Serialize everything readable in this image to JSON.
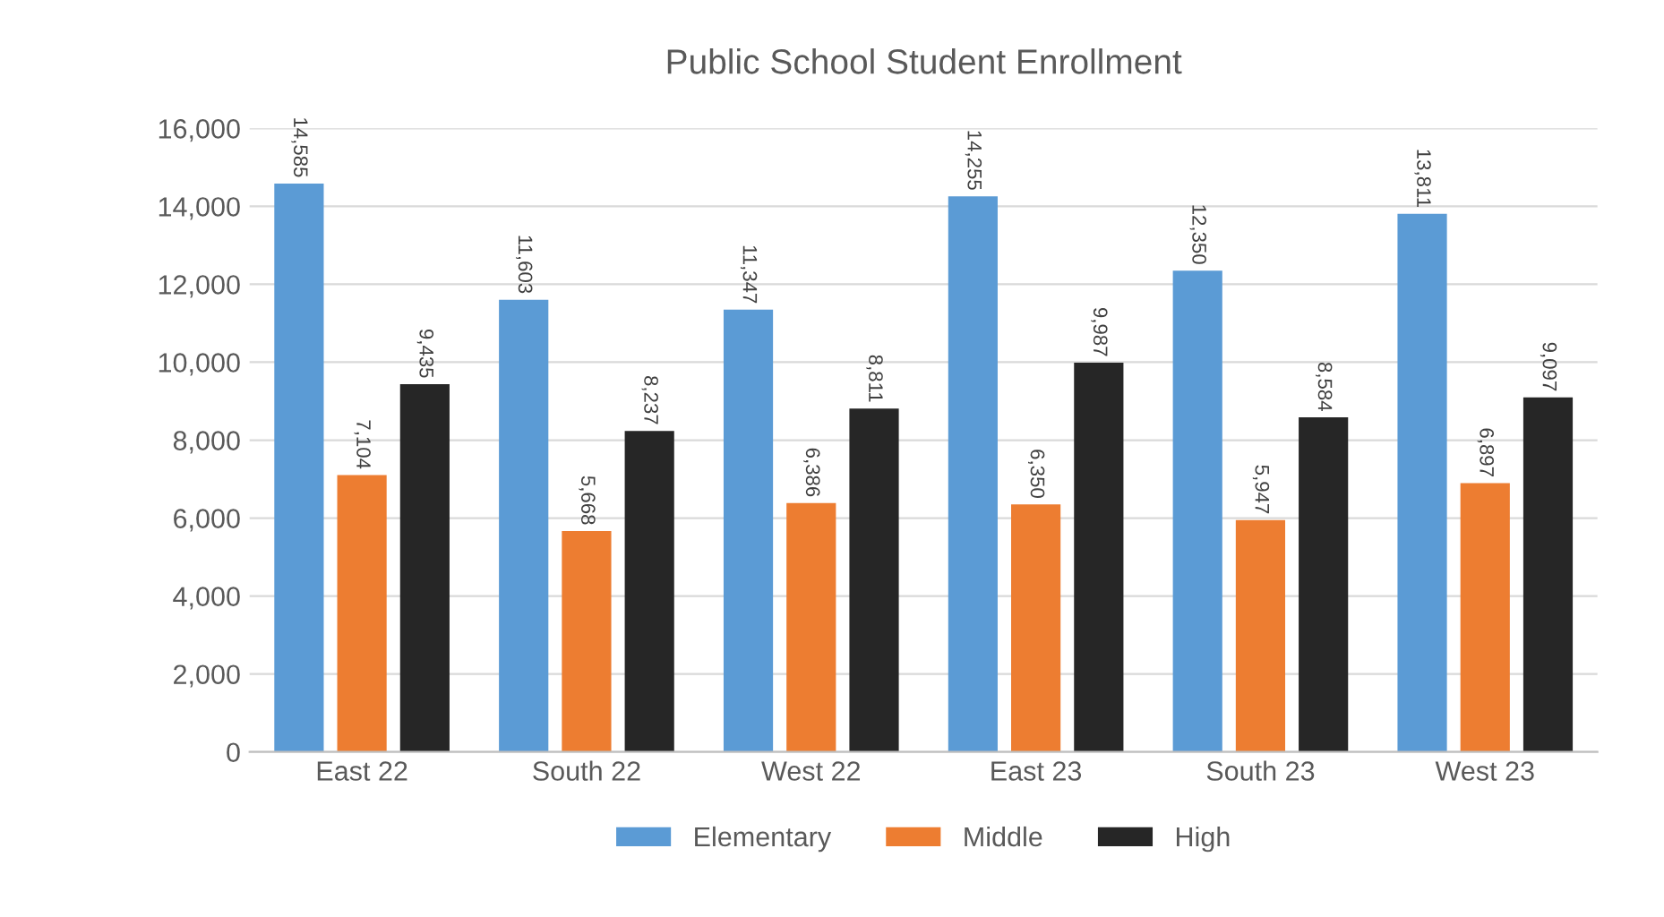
{
  "chart_data": {
    "type": "bar",
    "title": "Public School Student Enrollment",
    "categories": [
      "East 22",
      "South 22",
      "West 22",
      "East 23",
      "South 23",
      "West 23"
    ],
    "series": [
      {
        "name": "Elementary",
        "color": "#5b9bd5",
        "values": [
          14585,
          11603,
          11347,
          14255,
          12350,
          13811
        ],
        "value_labels": [
          "14,585",
          "11,603",
          "11,347",
          "14,255",
          "12,350",
          "13,811"
        ]
      },
      {
        "name": "Middle",
        "color": "#ed7d31",
        "values": [
          7104,
          5668,
          6386,
          6350,
          5947,
          6897
        ],
        "value_labels": [
          "7,104",
          "5,668",
          "6,386",
          "6,350",
          "5,947",
          "6,897"
        ]
      },
      {
        "name": "High",
        "color": "#262626",
        "values": [
          9435,
          8237,
          8811,
          9987,
          8584,
          9097
        ],
        "value_labels": [
          "9,435",
          "8,237",
          "8,811",
          "9,987",
          "8,584",
          "9,097"
        ]
      }
    ],
    "ylim": [
      0,
      16000
    ],
    "yticks": [
      {
        "value": 0,
        "label": "0"
      },
      {
        "value": 2000,
        "label": "2,000"
      },
      {
        "value": 4000,
        "label": "4,000"
      },
      {
        "value": 6000,
        "label": "6,000"
      },
      {
        "value": 8000,
        "label": "8,000"
      },
      {
        "value": 10000,
        "label": "10,000"
      },
      {
        "value": 12000,
        "label": "12,000"
      },
      {
        "value": 14000,
        "label": "14,000"
      },
      {
        "value": 16000,
        "label": "16,000"
      }
    ],
    "grid": "y",
    "legend": "bottom"
  }
}
